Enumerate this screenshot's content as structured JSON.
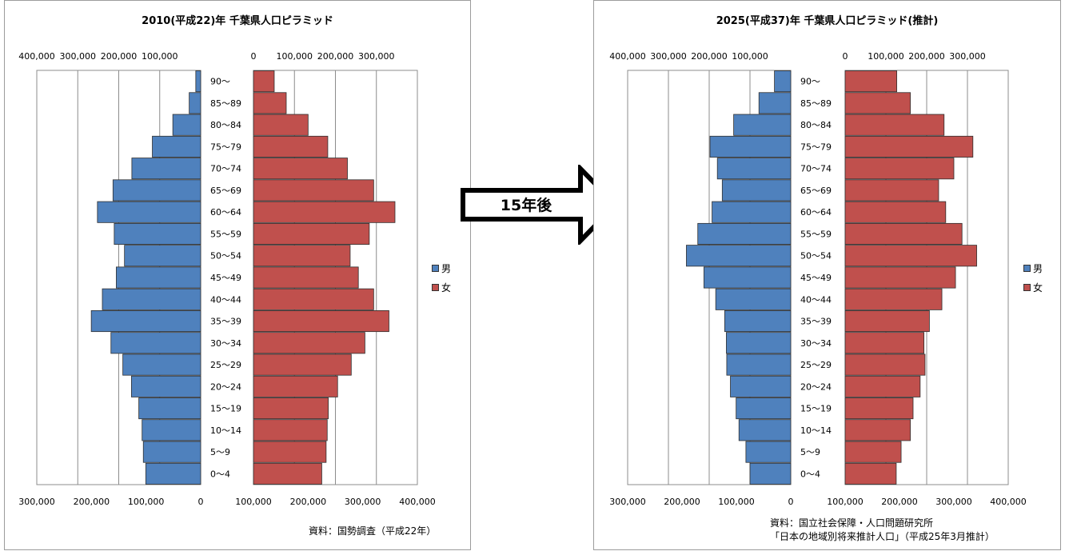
{
  "arrow_label": "15年後",
  "colors": {
    "male": "#4f81bd",
    "female": "#c0504d",
    "grid": "#8c8c8c"
  },
  "legend": {
    "male": "男",
    "female": "女"
  },
  "chart_data": [
    {
      "type": "bar",
      "orientation": "horizontal",
      "title": "2010(平成22)年 千葉県人口ピラミッド",
      "note": [
        "資料：国勢調査（平成22年）"
      ],
      "categories": [
        "90～",
        "85～89",
        "80～84",
        "75～79",
        "70～74",
        "65～69",
        "60～64",
        "55～59",
        "50～54",
        "45～49",
        "40～44",
        "35～39",
        "30～34",
        "25～29",
        "20～24",
        "15～19",
        "10～14",
        "5～9",
        "0～4"
      ],
      "male_axis": {
        "top_ticks": [
          "400,000",
          "300,000",
          "200,000",
          "100,000"
        ],
        "bottom_ticks": [
          "300,000",
          "200,000",
          "100,000",
          "0"
        ],
        "min": 0,
        "max": 400000
      },
      "female_axis": {
        "top_ticks": [
          "0",
          "100,000",
          "200,000",
          "300,000"
        ],
        "bottom_ticks": [
          "100,000",
          "200,000",
          "300,000",
          "400,000"
        ],
        "min": 0,
        "max": 300000
      },
      "series": [
        {
          "name": "男",
          "values": [
            12000,
            28000,
            68000,
            118000,
            168000,
            214000,
            252000,
            211000,
            186000,
            206000,
            240000,
            267000,
            219000,
            190000,
            169000,
            151000,
            143000,
            140000,
            134000
          ]
        },
        {
          "name": "女",
          "values": [
            38000,
            60000,
            100000,
            136000,
            172000,
            220000,
            259000,
            212000,
            177000,
            192000,
            220000,
            248000,
            204000,
            179000,
            154000,
            137000,
            135000,
            133000,
            125000
          ]
        }
      ]
    },
    {
      "type": "bar",
      "orientation": "horizontal",
      "title": "2025(平成37)年 千葉県人口ピラミッド(推計)",
      "note": [
        "資料：国立社会保障・人口問題研究所",
        "「日本の地域別将来推計人口」（平成25年3月推計）"
      ],
      "categories": [
        "90～",
        "85～89",
        "80～84",
        "75～79",
        "70～74",
        "65～69",
        "60～64",
        "55～59",
        "50～54",
        "45～49",
        "40～44",
        "35～39",
        "30～34",
        "25～29",
        "20～24",
        "15～19",
        "10～14",
        "5～9",
        "0～4"
      ],
      "male_axis": {
        "top_ticks": [
          "400,000",
          "300,000",
          "200,000",
          "100,000"
        ],
        "bottom_ticks": [
          "300,000",
          "200,000",
          "100,000",
          "0"
        ],
        "min": 0,
        "max": 400000
      },
      "female_axis": {
        "top_ticks": [
          "0",
          "100,000",
          "200,000",
          "300,000"
        ],
        "bottom_ticks": [
          "100,000",
          "200,000",
          "300,000",
          "400,000"
        ],
        "min": 0,
        "max": 300000
      },
      "series": [
        {
          "name": "男",
          "values": [
            40000,
            78000,
            140000,
            198000,
            180000,
            168000,
            193000,
            228000,
            256000,
            213000,
            184000,
            162000,
            158000,
            157000,
            148000,
            134000,
            127000,
            110000,
            100000
          ]
        },
        {
          "name": "女",
          "values": [
            95000,
            120000,
            182000,
            235000,
            200000,
            172000,
            185000,
            215000,
            242000,
            203000,
            178000,
            155000,
            145000,
            147000,
            138000,
            125000,
            120000,
            103000,
            94000
          ]
        }
      ]
    }
  ]
}
